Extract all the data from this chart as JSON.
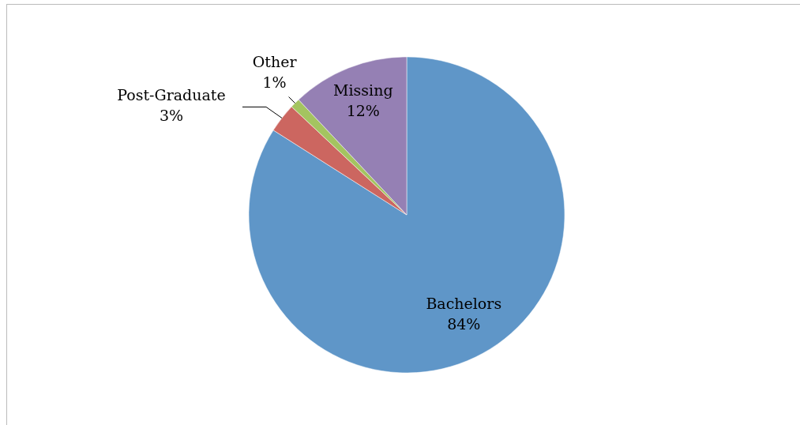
{
  "chart_data": {
    "type": "pie",
    "categories": [
      "Bachelors",
      "Post-Graduate",
      "Other",
      "Missing"
    ],
    "values": [
      84,
      3,
      1,
      12
    ],
    "colors": [
      "#5f96c8",
      "#cc6660",
      "#a4c460",
      "#9580b4"
    ],
    "value_labels": [
      "84%",
      "3%",
      "1%",
      "12%"
    ]
  }
}
